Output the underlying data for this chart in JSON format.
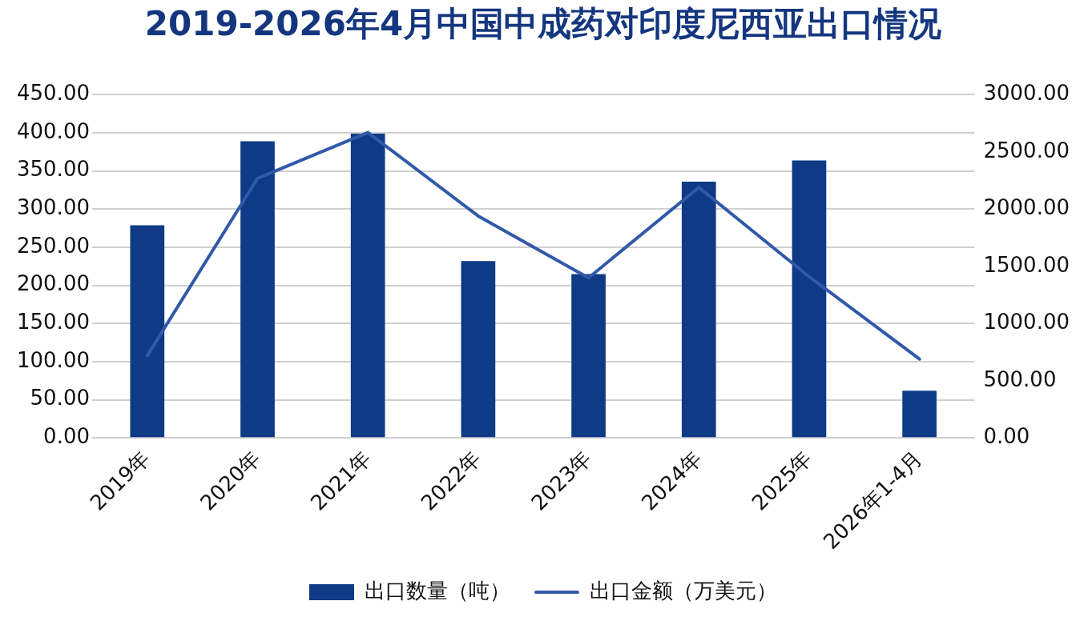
{
  "chart_data": {
    "type": "bar",
    "title": "2019-2026年4月中国中成药对印度尼西亚出口情况",
    "categories": [
      "2019年",
      "2020年",
      "2021年",
      "2022年",
      "2023年",
      "2024年",
      "2025年",
      "2026年1-4月"
    ],
    "series": [
      {
        "name": "出口数量（吨）",
        "color": "#0e3a86",
        "values": [
          279,
          389,
          399,
          232,
          215,
          336,
          364,
          62
        ]
      },
      {
        "name": "出口金额（万美元）",
        "type": "line",
        "axis": "y2",
        "color": "#3259a8",
        "values": [
          720,
          2270,
          2670,
          1940,
          1400,
          2190,
          1410,
          690
        ]
      }
    ],
    "ylim": [
      0,
      450
    ],
    "yticks": [
      {
        "value": 0,
        "label": "0.00"
      },
      {
        "value": 50,
        "label": "50.00"
      },
      {
        "value": 100,
        "label": "100.00"
      },
      {
        "value": 150,
        "label": "150.00"
      },
      {
        "value": 200,
        "label": "200.00"
      },
      {
        "value": 250,
        "label": "250.00"
      },
      {
        "value": 300,
        "label": "300.00"
      },
      {
        "value": 350,
        "label": "350.00"
      },
      {
        "value": 400,
        "label": "400.00"
      },
      {
        "value": 450,
        "label": "450.00"
      }
    ],
    "y2lim": [
      0,
      3000
    ],
    "y2ticks": [
      {
        "value": 0,
        "label": "0.00"
      },
      {
        "value": 500,
        "label": "500.00"
      },
      {
        "value": 1000,
        "label": "1000.00"
      },
      {
        "value": 1500,
        "label": "1500.00"
      },
      {
        "value": 2000,
        "label": "2000.00"
      },
      {
        "value": 2500,
        "label": "2500.00"
      },
      {
        "value": 3000,
        "label": "3000.00"
      }
    ],
    "grid": "y",
    "legend": "bottom",
    "marker": "none"
  }
}
